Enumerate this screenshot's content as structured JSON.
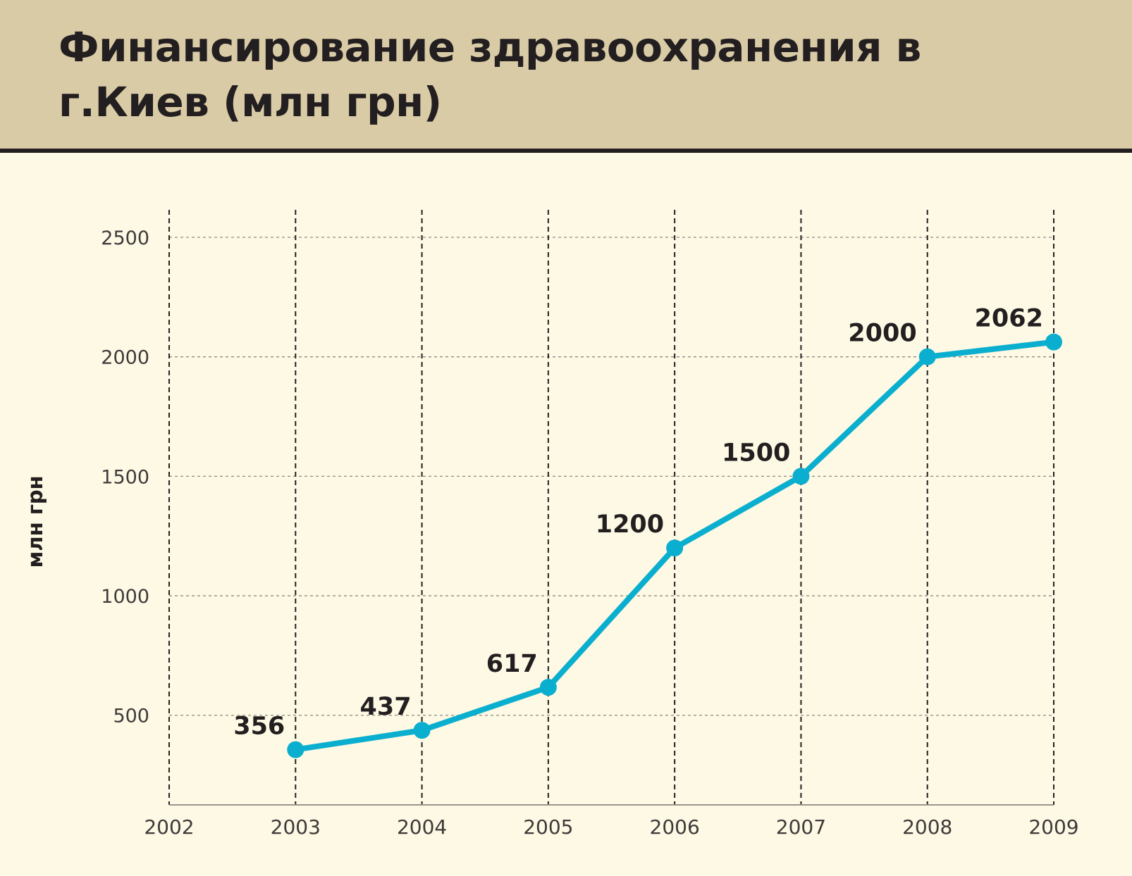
{
  "title": "Финансирование здравоохранения в г.Киев (млн грн)",
  "chart_data": {
    "type": "line",
    "title": "Финансирование здравоохранения в г.Киев (млн грн)",
    "ylabel": "млн грн",
    "xlabel": "",
    "x_ticks": [
      "2002",
      "2003",
      "2004",
      "2005",
      "2006",
      "2007",
      "2008",
      "2009"
    ],
    "y_ticks": [
      500,
      1000,
      1500,
      2000,
      2500
    ],
    "xlim": [
      2002,
      2009
    ],
    "ylim": [
      125,
      2615
    ],
    "grid": true,
    "series": [
      {
        "x": [
          2003,
          2004,
          2005,
          2006,
          2007,
          2008,
          2009
        ],
        "values": [
          356,
          437,
          617,
          1200,
          1500,
          2000,
          2062
        ],
        "labels": [
          "356",
          "437",
          "617",
          "1200",
          "1500",
          "2000",
          "2062"
        ],
        "color": "#0aafcf"
      }
    ]
  },
  "colors": {
    "header_bg": "#d9cba6",
    "page_bg": "#fdf9e4",
    "line": "#0aafcf",
    "text": "#231f20",
    "tick_text": "#3e3a3a"
  }
}
